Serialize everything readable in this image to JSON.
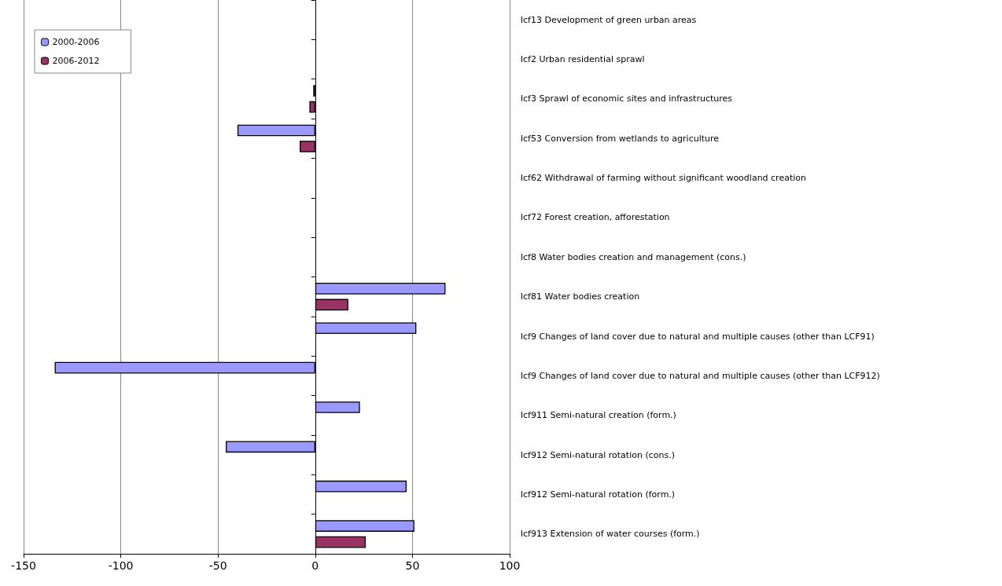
{
  "chart_data": {
    "type": "bar",
    "orientation": "horizontal",
    "categories": [
      "lcf13 Development of green urban areas",
      "lcf2 Urban residential sprawl",
      "lcf3 Sprawl of economic sites and infrastructures",
      "lcf53 Conversion from wetlands to agriculture",
      "lcf62 Withdrawal of farming without significant woodland creation",
      "lcf72 Forest creation, afforestation",
      "lcf8 Water bodies creation and management (cons.)",
      "lcf81 Water bodies creation",
      "lcf9 Changes of land cover due to natural and multiple causes (other than LCF91)",
      "lcf9 Changes of land cover due to natural and multiple causes (other than LCF912)",
      "lcf911 Semi-natural creation (form.)",
      "lcf912 Semi-natural rotation (cons.)",
      "lcf912 Semi-natural rotation (form.)",
      "lcf913 Extension of water courses (form.)"
    ],
    "series": [
      {
        "name": "2000-2006",
        "color": "#9999ff",
        "values": [
          null,
          null,
          -1,
          -40,
          null,
          null,
          null,
          67,
          52,
          -134,
          23,
          -46,
          47,
          51
        ]
      },
      {
        "name": "2006-2012",
        "color": "#993366",
        "values": [
          null,
          null,
          -3,
          -8,
          null,
          null,
          null,
          17,
          null,
          null,
          null,
          null,
          null,
          26
        ]
      }
    ],
    "xlim": [
      -150,
      100
    ],
    "xticks": [
      -150,
      -100,
      -50,
      0,
      50,
      100
    ],
    "grid": "x",
    "legend": "top left"
  }
}
